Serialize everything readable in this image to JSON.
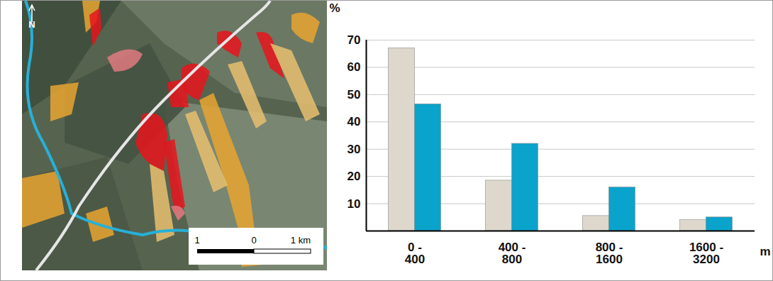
{
  "chart_data": {
    "type": "bar",
    "categories": [
      "0 - 400",
      "400 - 800",
      "800 - 1600",
      "1600 - 3200"
    ],
    "series": [
      {
        "color": "#ddd8cb",
        "values": [
          67,
          18.5,
          5.5,
          4
        ]
      },
      {
        "color": "#0aa3cc",
        "values": [
          46.5,
          32,
          16,
          5
        ]
      }
    ],
    "xlabel": "m",
    "ylabel": "%",
    "ylim": [
      0,
      70
    ],
    "yticks": [
      10,
      20,
      30,
      40,
      50,
      60,
      70
    ],
    "grid": true
  },
  "map": {
    "north_label": "N",
    "scale_labels": [
      "1",
      "0",
      "1 km"
    ]
  }
}
